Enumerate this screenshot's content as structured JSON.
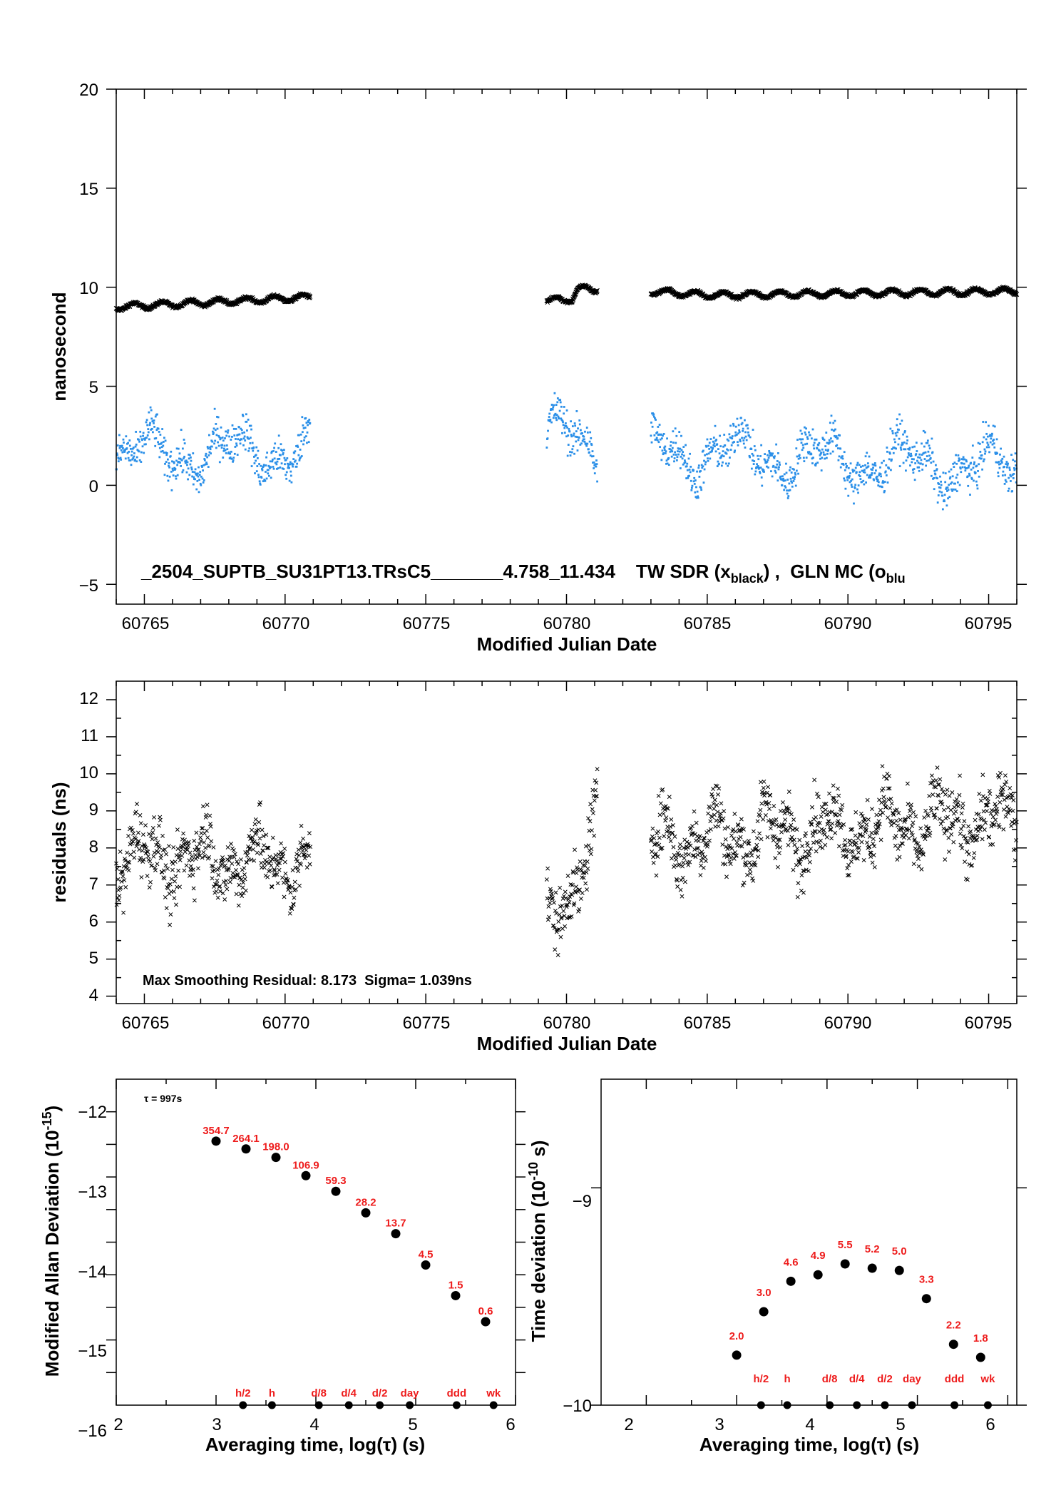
{
  "colors": {
    "black_series": "#000000",
    "blue_series": "#2a8fe8",
    "red_labels": "#ee1c1c"
  },
  "chart_data": [
    {
      "type": "scatter",
      "id": "top",
      "xlabel": "Modified Julian Date",
      "ylabel": "nanosecond",
      "xlim": [
        60764,
        60796
      ],
      "ylim": [
        -6,
        20
      ],
      "xticks": [
        "60765",
        "60770",
        "60775",
        "60780",
        "60785",
        "60790",
        "60795"
      ],
      "yticks": [
        "20",
        "15",
        "10",
        "5",
        "0",
        "−5"
      ],
      "annotation": {
        "prefix": "_2504_SUPTB_SU31PT13.TRsC5_______4.758_11.434    TW SDR (x",
        "sub1": "black",
        "mid": ") ,  GLN MC (o",
        "sub2": "blu"
      },
      "segments": [
        [
          60764.0,
          60770.9
        ],
        [
          60779.3,
          60781.1
        ],
        [
          60783.0,
          60796.0
        ]
      ],
      "series": [
        {
          "marker": "x",
          "color": "black",
          "level": [
            [
              60764,
              9.0
            ],
            [
              60770.9,
              9.5
            ],
            [
              60779.3,
              9.3
            ],
            [
              60780.2,
              9.4
            ],
            [
              60780.4,
              9.9
            ],
            [
              60781.1,
              9.9
            ],
            [
              60783,
              9.8
            ],
            [
              60784,
              9.7
            ],
            [
              60785,
              9.6
            ],
            [
              60796,
              9.8
            ]
          ]
        },
        {
          "marker": "dot",
          "color": "blue",
          "level": [
            [
              60764,
              1.5
            ],
            [
              60770.9,
              1.8
            ],
            [
              60779.3,
              3.0
            ],
            [
              60781.1,
              1.2
            ],
            [
              60783,
              1.8
            ],
            [
              60796,
              0.8
            ]
          ],
          "range": [
            -1.8,
            4.8
          ]
        }
      ]
    },
    {
      "type": "scatter",
      "id": "mid",
      "xlabel": "Modified Julian Date",
      "ylabel": "residuals (ns)",
      "xlim": [
        60764,
        60796
      ],
      "ylim": [
        3.8,
        12.5
      ],
      "xticks": [
        "60765",
        "60770",
        "60775",
        "60780",
        "60785",
        "60790",
        "60795"
      ],
      "yticks": [
        "12",
        "11",
        "10",
        "9",
        "8",
        "7",
        "6",
        "5",
        "4"
      ],
      "annotation": "Max Smoothing Residual: 8.173  Sigma= 1.039ns",
      "range": [
        4.8,
        11.4
      ],
      "segments": [
        [
          60764.0,
          60770.9
        ],
        [
          60779.3,
          60781.1
        ],
        [
          60783.0,
          60796.0
        ]
      ],
      "series": [
        {
          "marker": "x",
          "color": "black",
          "level": [
            [
              60764,
              7.8
            ],
            [
              60770.9,
              7.6
            ],
            [
              60779.3,
              5.8
            ],
            [
              60781.1,
              8.4
            ],
            [
              60783,
              8.2
            ],
            [
              60796,
              8.8
            ]
          ]
        }
      ]
    },
    {
      "type": "scatter",
      "id": "mdev",
      "xlabel": "Averaging time, log(τ) (s)",
      "ylabel": "Modified Allan Deviation (10",
      "ylabel_sup": "-15",
      "ylabel_end": ")",
      "xlim": [
        2,
        6
      ],
      "ylim": [
        -16.5,
        -11.5
      ],
      "xticks": [
        "2",
        "3",
        "4",
        "5",
        "6"
      ],
      "yticks": [
        "−12",
        "−13",
        "−14",
        "−15",
        "−16"
      ],
      "tau_note": "τ = 997s",
      "x": [
        3.0,
        3.3,
        3.6,
        3.9,
        4.2,
        4.5,
        4.8,
        5.1,
        5.4,
        5.7
      ],
      "y": [
        -12.45,
        -12.57,
        -12.7,
        -12.98,
        -13.22,
        -13.55,
        -13.87,
        -14.35,
        -14.82,
        -15.22
      ],
      "point_labels": [
        "354.7",
        "264.1",
        "198.0",
        "106.9",
        "59.3",
        "28.2",
        "13.7",
        "4.5",
        "1.5",
        "0.6"
      ],
      "marker_x": [
        3.27,
        3.56,
        4.03,
        4.33,
        4.64,
        4.94,
        5.41,
        5.78
      ],
      "marker_labels": [
        "h/2",
        "h",
        "d/8",
        "d/4",
        "d/2",
        "day",
        "ddd",
        "wk"
      ]
    },
    {
      "type": "scatter",
      "id": "tdev",
      "xlabel": "Averaging time, log(τ) (s)",
      "ylabel": "Time deviation (10",
      "ylabel_sup": "-10",
      "ylabel_end": " s)",
      "xlim": [
        1.5,
        6.1
      ],
      "ylim": [
        -10,
        -8.5
      ],
      "xticks": [
        "2",
        "3",
        "4",
        "5",
        "6"
      ],
      "yticks": [
        "−9",
        "−10"
      ],
      "x": [
        3.0,
        3.3,
        3.6,
        3.9,
        4.2,
        4.5,
        4.8,
        5.1,
        5.4,
        5.7
      ],
      "y": [
        -9.77,
        -9.57,
        -9.43,
        -9.4,
        -9.35,
        -9.37,
        -9.38,
        -9.51,
        -9.72,
        -9.78
      ],
      "point_labels": [
        "2.0",
        "3.0",
        "4.6",
        "4.9",
        "5.5",
        "5.2",
        "5.0",
        "3.3",
        "2.2",
        "1.8"
      ],
      "marker_x": [
        3.27,
        3.56,
        4.03,
        4.33,
        4.64,
        4.94,
        5.41,
        5.78
      ],
      "marker_labels": [
        "h/2",
        "h",
        "d/8",
        "d/4",
        "d/2",
        "day",
        "ddd",
        "wk"
      ]
    }
  ]
}
